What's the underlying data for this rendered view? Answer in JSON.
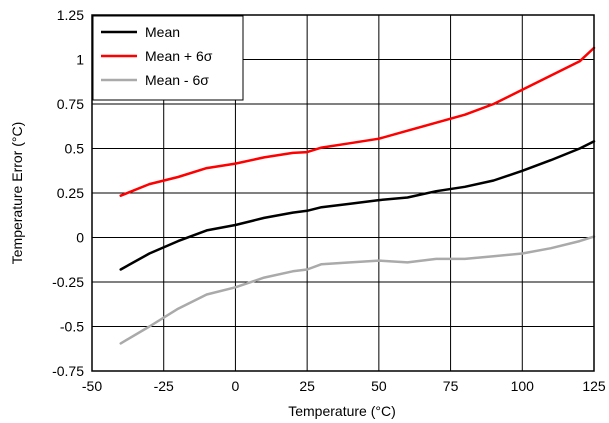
{
  "chart_data": {
    "type": "line",
    "title": "",
    "xlabel": "Temperature (°C)",
    "ylabel": "Temperature Error (°C)",
    "xlim": [
      -50,
      125
    ],
    "ylim": [
      -0.75,
      1.25
    ],
    "x_ticks": [
      -50,
      -25,
      0,
      25,
      50,
      75,
      100,
      125
    ],
    "x_tick_labels": [
      "-50",
      "-25",
      "0",
      "25",
      "50",
      "75",
      "100",
      "125"
    ],
    "y_ticks": [
      1.25,
      1,
      0.75,
      0.5,
      0.25,
      0,
      -0.25,
      -0.5,
      -0.75
    ],
    "y_tick_labels": [
      "1.25",
      "1",
      "0.75",
      "0.5",
      "0.25",
      "0",
      "-0.25",
      "-0.5",
      "-0.75"
    ],
    "grid": true,
    "legend_position": "top-left",
    "x": [
      -40,
      -30,
      -20,
      -10,
      0,
      10,
      20,
      25,
      30,
      40,
      50,
      60,
      70,
      80,
      90,
      100,
      110,
      120,
      125
    ],
    "series": [
      {
        "name": "Mean",
        "color": "#000000",
        "values": [
          -0.18,
          -0.09,
          -0.02,
          0.04,
          0.07,
          0.11,
          0.14,
          0.15,
          0.17,
          0.19,
          0.21,
          0.225,
          0.26,
          0.285,
          0.32,
          0.375,
          0.435,
          0.5,
          0.54
        ]
      },
      {
        "name": "Mean + 6σ",
        "color": "#ff0000",
        "values": [
          0.235,
          0.3,
          0.34,
          0.39,
          0.415,
          0.45,
          0.475,
          0.48,
          0.505,
          0.53,
          0.555,
          0.6,
          0.645,
          0.69,
          0.75,
          0.83,
          0.91,
          0.99,
          1.065
        ]
      },
      {
        "name": "Mean - 6σ",
        "color": "#aaaaaa",
        "values": [
          -0.595,
          -0.5,
          -0.4,
          -0.32,
          -0.28,
          -0.225,
          -0.19,
          -0.18,
          -0.15,
          -0.14,
          -0.13,
          -0.14,
          -0.12,
          -0.12,
          -0.105,
          -0.09,
          -0.06,
          -0.02,
          0.005
        ]
      }
    ]
  }
}
